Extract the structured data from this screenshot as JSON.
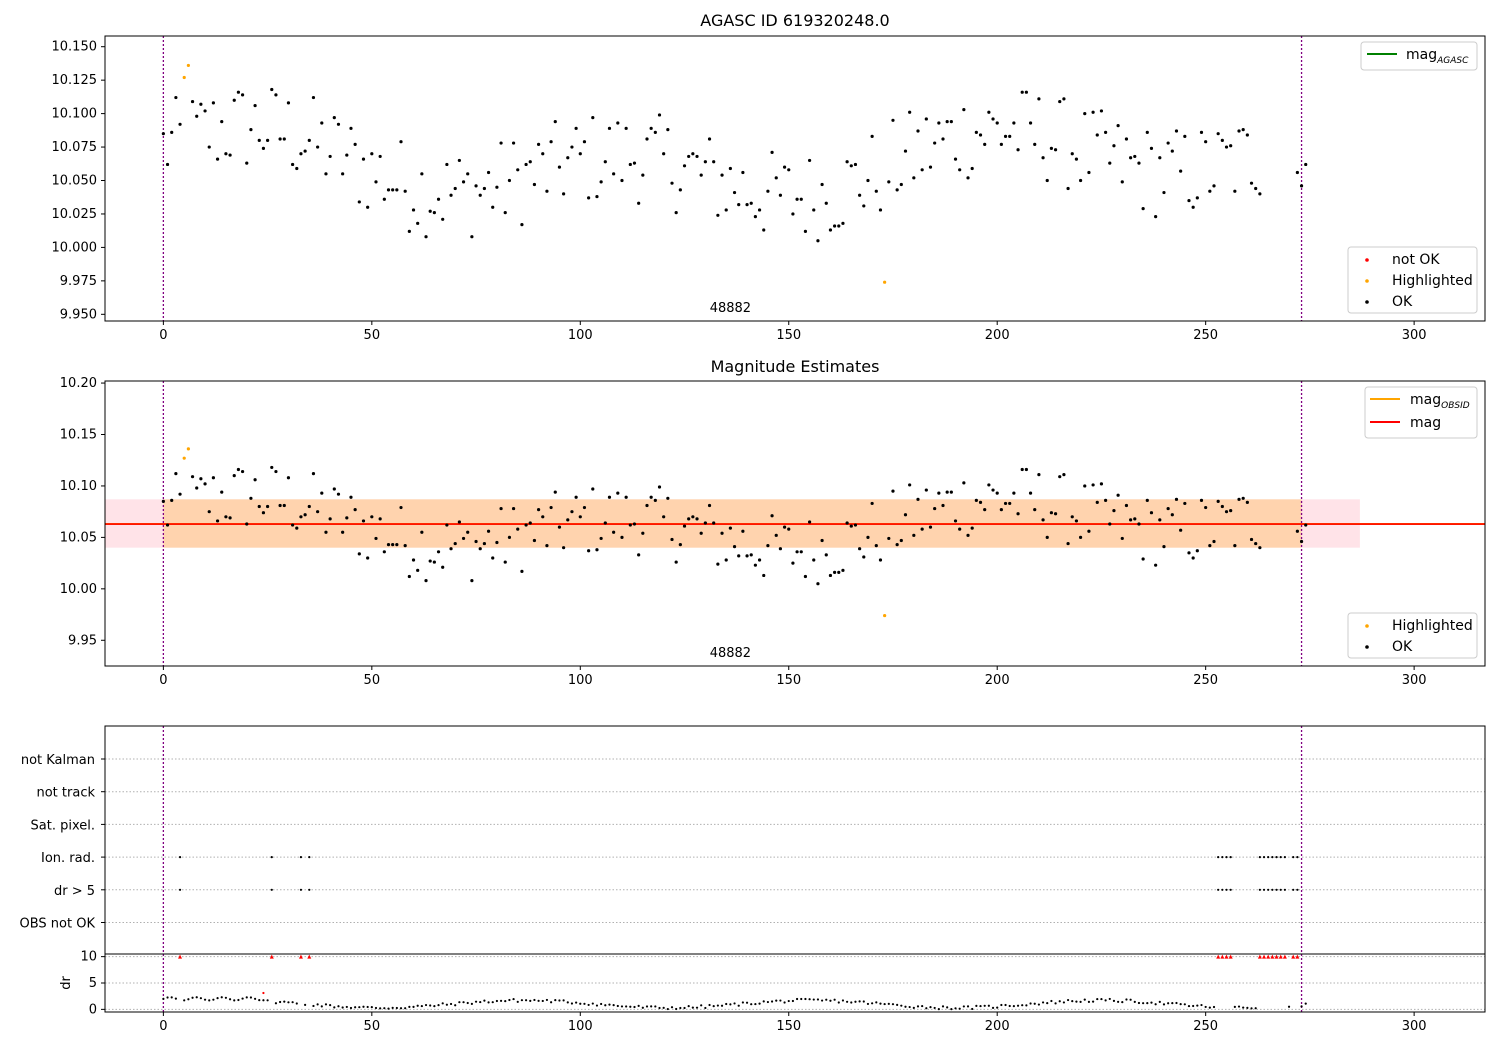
{
  "chart_data": [
    {
      "id": "top",
      "type": "scatter",
      "title": "AGASC ID 619320248.0",
      "xlim": [
        -14,
        317
      ],
      "ylim": [
        9.945,
        10.158
      ],
      "xticks": [
        0,
        50,
        100,
        150,
        200,
        250,
        300
      ],
      "yticks": [
        "9.950",
        "9.975",
        "10.000",
        "10.025",
        "10.050",
        "10.075",
        "10.100",
        "10.125",
        "10.150"
      ],
      "vlines": [
        0,
        273
      ],
      "obsid_label": "48882",
      "obsid_label_x": 136,
      "highlighted": [
        [
          5,
          10.127
        ],
        [
          6,
          10.136
        ],
        [
          173,
          9.974
        ]
      ],
      "legend_upper": [
        {
          "label": "mag",
          "sub": "AGASC",
          "color": "#008000"
        }
      ],
      "legend_lower": [
        {
          "label": "not OK",
          "color": "#ff0000"
        },
        {
          "label": "Highlighted",
          "color": "#ffa500"
        },
        {
          "label": "OK",
          "color": "#000000"
        }
      ]
    },
    {
      "id": "middle",
      "type": "scatter",
      "title": "Magnitude Estimates",
      "xlim": [
        -14,
        317
      ],
      "ylim": [
        9.925,
        10.202
      ],
      "xticks": [
        0,
        50,
        100,
        150,
        200,
        250,
        300
      ],
      "yticks": [
        "9.95",
        "10.00",
        "10.05",
        "10.10",
        "10.15",
        "10.20"
      ],
      "vlines": [
        0,
        273
      ],
      "obsid_label": "48882",
      "obsid_label_x": 136,
      "mag_line": 10.063,
      "band_outer": [
        10.04,
        10.087
      ],
      "band_outer_x": [
        -14,
        287
      ],
      "band_inner_x": [
        0,
        273
      ],
      "highlighted": [
        [
          5,
          10.127
        ],
        [
          6,
          10.136
        ],
        [
          173,
          9.974
        ]
      ],
      "legend_upper": [
        {
          "label": "mag",
          "sub": "OBSID",
          "color": "#ffa500"
        },
        {
          "label": "mag",
          "sub": "",
          "color": "#ff0000"
        }
      ],
      "legend_lower": [
        {
          "label": "Highlighted",
          "color": "#ffa500"
        },
        {
          "label": "OK",
          "color": "#000000"
        }
      ]
    },
    {
      "id": "flags",
      "type": "scatter",
      "xlim": [
        -14,
        317
      ],
      "categories": [
        "not Kalman",
        "not track",
        "Sat. pixel.",
        "Ion. rad.",
        "dr > 5",
        "OBS not OK"
      ],
      "flag_points": {
        "Ion. rad.": [
          4,
          26,
          33,
          35,
          253,
          254,
          255,
          256,
          263,
          264,
          265,
          266,
          267,
          268,
          269,
          271,
          272
        ],
        "dr > 5": [
          4,
          26,
          33,
          35,
          253,
          254,
          255,
          256,
          263,
          264,
          265,
          266,
          267,
          268,
          269,
          271,
          272
        ]
      },
      "vlines": [
        0,
        273
      ]
    },
    {
      "id": "dr",
      "type": "scatter",
      "ylabel": "dr",
      "xlim": [
        -14,
        317
      ],
      "ylim": [
        -0.5,
        10.5
      ],
      "xticks": [
        0,
        50,
        100,
        150,
        200,
        250,
        300
      ],
      "yticks": [
        "0",
        "5",
        "10"
      ],
      "capped_points": [
        4,
        26,
        33,
        35,
        253,
        254,
        255,
        256,
        263,
        264,
        265,
        266,
        267,
        268,
        269,
        271,
        272
      ],
      "red_points": [
        [
          24,
          3.1
        ]
      ],
      "vlines": [
        0,
        273
      ]
    }
  ]
}
